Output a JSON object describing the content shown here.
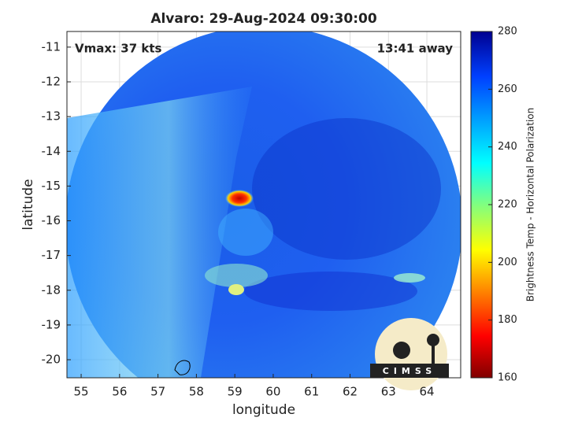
{
  "chart_data": {
    "type": "map",
    "title": "Alvaro: 29-Aug-2024 09:30:00",
    "annotations": [
      "Vmax: 37 kts",
      "13:41 away"
    ],
    "xlabel": "longitude",
    "ylabel": "latitude",
    "xlim": [
      54.63,
      64.88
    ],
    "ylim": [
      -20.52,
      -10.55
    ],
    "xticks": [
      55,
      56,
      57,
      58,
      59,
      60,
      61,
      62,
      63,
      64
    ],
    "yticks": [
      -11,
      -12,
      -13,
      -14,
      -15,
      -16,
      -17,
      -18,
      -19,
      -20
    ],
    "grid": true,
    "colorbar": {
      "label": "Brightness Temp - Horizontal Polarization",
      "lim": [
        160,
        280
      ],
      "ticks": [
        160,
        180,
        200,
        220,
        240,
        260,
        280
      ]
    },
    "logo": "CIMSS"
  }
}
